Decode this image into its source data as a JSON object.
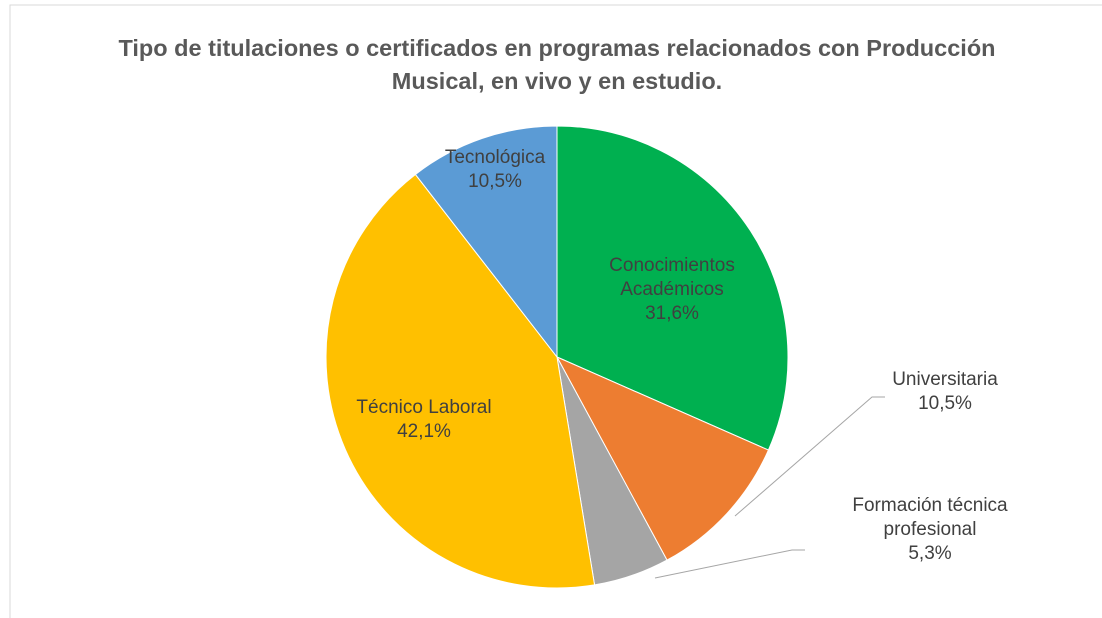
{
  "chart_data": {
    "type": "pie",
    "title": "Tipo de titulaciones o certificados en programas relacionados con Producción Musical, en vivo y en estudio.",
    "categories": [
      "Conocimientos Académicos",
      "Universitaria",
      "Formación técnica profesional",
      "Técnico Laboral",
      "Tecnológica"
    ],
    "values": [
      31.6,
      10.5,
      5.3,
      42.1,
      10.5
    ],
    "value_labels": [
      "31,6%",
      "10,5%",
      "5,3%",
      "42,1%",
      "10,5%"
    ],
    "colors": [
      "#00b050",
      "#ed7d31",
      "#a5a5a5",
      "#ffc000",
      "#5b9bd5"
    ]
  }
}
